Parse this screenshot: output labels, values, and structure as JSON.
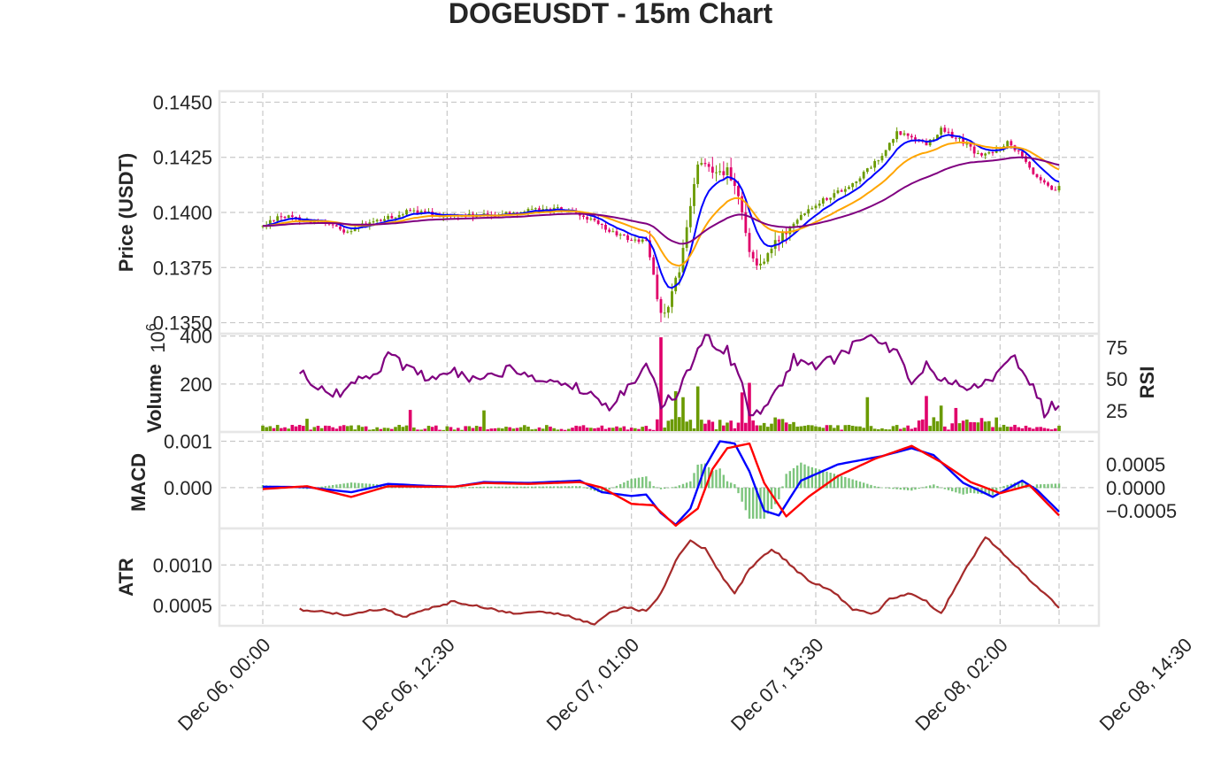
{
  "title": "DOGEUSDT - 15m Chart",
  "x_tick_labels": [
    "Dec 06, 00:00",
    "Dec 06, 12:30",
    "Dec 07, 01:00",
    "Dec 07, 13:30",
    "Dec 08, 02:00",
    "Dec 08, 14:30"
  ],
  "colors": {
    "up": "#6a9a00",
    "down": "#e0006a",
    "ma_fast": "#0000ff",
    "ma_mid": "#ffa500",
    "ma_slow": "#800080",
    "rsi": "#800080",
    "macd": "#0000ff",
    "signal": "#ff0000",
    "hist": "#66bb66",
    "atr": "#a52a2a"
  },
  "chart_data": [
    {
      "type": "candlestick",
      "panel": "price",
      "ylabel": "Price (USDT)",
      "y_ticks": [
        "0.1350",
        "0.1375",
        "0.1400",
        "0.1425",
        "0.1450"
      ],
      "ylim": [
        0.1345,
        0.1455
      ],
      "candle_anchors": [
        [
          0,
          0.13935
        ],
        [
          4,
          0.13985
        ],
        [
          10,
          0.1397
        ],
        [
          16,
          0.13955
        ],
        [
          22,
          0.13915
        ],
        [
          30,
          0.13955
        ],
        [
          40,
          0.14005
        ],
        [
          50,
          0.13985
        ],
        [
          60,
          0.13985
        ],
        [
          70,
          0.14005
        ],
        [
          80,
          0.14015
        ],
        [
          88,
          0.13975
        ],
        [
          94,
          0.13915
        ],
        [
          100,
          0.13875
        ],
        [
          104,
          0.1387
        ],
        [
          106,
          0.1372
        ],
        [
          108,
          0.13535
        ],
        [
          110,
          0.1356
        ],
        [
          112,
          0.1368
        ],
        [
          114,
          0.1382
        ],
        [
          116,
          0.1403
        ],
        [
          118,
          0.1421
        ],
        [
          122,
          0.14205
        ],
        [
          126,
          0.14185
        ],
        [
          130,
          0.1402
        ],
        [
          132,
          0.1382
        ],
        [
          134,
          0.1376
        ],
        [
          136,
          0.1378
        ],
        [
          140,
          0.1388
        ],
        [
          144,
          0.1397
        ],
        [
          150,
          0.1404
        ],
        [
          160,
          0.1413
        ],
        [
          168,
          0.14255
        ],
        [
          172,
          0.1436
        ],
        [
          176,
          0.14345
        ],
        [
          180,
          0.1431
        ],
        [
          184,
          0.14375
        ],
        [
          190,
          0.1432
        ],
        [
          194,
          0.1426
        ],
        [
          198,
          0.1427
        ],
        [
          202,
          0.1432
        ],
        [
          206,
          0.14265
        ],
        [
          210,
          0.1415
        ],
        [
          214,
          0.141
        ],
        [
          216,
          0.1411
        ]
      ],
      "series": [
        {
          "name": "",
          "color": "#0000ff"
        },
        {
          "name": "",
          "color": "#ffa500"
        },
        {
          "name": "",
          "color": "#800080"
        }
      ]
    },
    {
      "type": "bar",
      "panel": "volume",
      "ylabel": "Volume",
      "scale_label": "1e6",
      "y_ticks": [
        "200",
        "400"
      ],
      "ylim": [
        0,
        410
      ],
      "spikes": [
        [
          12,
          55
        ],
        [
          40,
          92
        ],
        [
          60,
          90
        ],
        [
          108,
          395
        ],
        [
          112,
          170
        ],
        [
          114,
          145
        ],
        [
          118,
          190
        ],
        [
          130,
          165
        ],
        [
          132,
          205
        ],
        [
          164,
          145
        ],
        [
          180,
          150
        ],
        [
          184,
          110
        ],
        [
          188,
          100
        ]
      ]
    },
    {
      "type": "line",
      "panel": "rsi",
      "ylabel": "RSI",
      "y_ticks": [
        "25",
        "50",
        "75"
      ],
      "ylim": [
        8,
        86
      ],
      "anchors": [
        [
          10,
          57
        ],
        [
          14,
          44
        ],
        [
          20,
          38
        ],
        [
          26,
          48
        ],
        [
          32,
          56
        ],
        [
          34,
          68
        ],
        [
          40,
          58
        ],
        [
          46,
          48
        ],
        [
          52,
          55
        ],
        [
          60,
          48
        ],
        [
          66,
          58
        ],
        [
          72,
          52
        ],
        [
          80,
          48
        ],
        [
          86,
          42
        ],
        [
          90,
          38
        ],
        [
          94,
          28
        ],
        [
          100,
          44
        ],
        [
          104,
          62
        ],
        [
          106,
          55
        ],
        [
          108,
          28
        ],
        [
          112,
          38
        ],
        [
          116,
          60
        ],
        [
          120,
          84
        ],
        [
          126,
          72
        ],
        [
          130,
          46
        ],
        [
          132,
          22
        ],
        [
          136,
          28
        ],
        [
          140,
          42
        ],
        [
          144,
          66
        ],
        [
          150,
          62
        ],
        [
          156,
          66
        ],
        [
          162,
          82
        ],
        [
          168,
          80
        ],
        [
          172,
          70
        ],
        [
          176,
          44
        ],
        [
          180,
          60
        ],
        [
          186,
          48
        ],
        [
          192,
          44
        ],
        [
          198,
          48
        ],
        [
          204,
          66
        ],
        [
          208,
          50
        ],
        [
          212,
          24
        ],
        [
          216,
          32
        ]
      ]
    },
    {
      "type": "line",
      "panel": "macd",
      "ylabel": "MACD",
      "y_ticks": [
        "0.000",
        "0.001"
      ],
      "y_ticks_right": [
        "−0.0005",
        "0.0000",
        "0.0005"
      ],
      "ylim": [
        -0.00088,
        0.0012
      ],
      "series": [
        {
          "name": "",
          "anchors": [
            [
              0,
              2e-05
            ],
            [
              12,
              1e-05
            ],
            [
              24,
              -0.0001
            ],
            [
              34,
              8e-05
            ],
            [
              44,
              4e-05
            ],
            [
              52,
              2e-05
            ],
            [
              60,
              0.00012
            ],
            [
              72,
              0.0001
            ],
            [
              86,
              0.00015
            ],
            [
              92,
              -0.0001
            ],
            [
              100,
              -0.00018
            ],
            [
              104,
              -0.00015
            ],
            [
              108,
              -0.00055
            ],
            [
              112,
              -0.0008
            ],
            [
              116,
              -0.00045
            ],
            [
              120,
              0.00045
            ],
            [
              124,
              0.001
            ],
            [
              128,
              0.00095
            ],
            [
              132,
              0.00035
            ],
            [
              136,
              -0.0005
            ],
            [
              140,
              -0.0006
            ],
            [
              146,
              0.00015
            ],
            [
              156,
              0.0005
            ],
            [
              168,
              0.00068
            ],
            [
              176,
              0.00085
            ],
            [
              182,
              0.0007
            ],
            [
              190,
              0.0001
            ],
            [
              198,
              -0.0002
            ],
            [
              206,
              0.00015
            ],
            [
              210,
              -5e-05
            ],
            [
              216,
              -0.00052
            ]
          ]
        },
        {
          "name": "",
          "anchors": [
            [
              0,
              -3e-05
            ],
            [
              12,
              3e-05
            ],
            [
              24,
              -0.0002
            ],
            [
              34,
              3e-05
            ],
            [
              44,
              2e-05
            ],
            [
              52,
              2e-05
            ],
            [
              60,
              0.0001
            ],
            [
              72,
              8e-05
            ],
            [
              86,
              0.00012
            ],
            [
              92,
              0.0
            ],
            [
              100,
              -0.00035
            ],
            [
              106,
              -0.00038
            ],
            [
              112,
              -0.00082
            ],
            [
              118,
              -0.00045
            ],
            [
              122,
              0.0004
            ],
            [
              126,
              0.00085
            ],
            [
              132,
              0.00095
            ],
            [
              136,
              0.0001
            ],
            [
              142,
              -0.00062
            ],
            [
              148,
              -0.0002
            ],
            [
              156,
              0.00025
            ],
            [
              166,
              0.00062
            ],
            [
              176,
              0.0009
            ],
            [
              184,
              0.00055
            ],
            [
              192,
              0.00012
            ],
            [
              200,
              -0.00012
            ],
            [
              208,
              5e-05
            ],
            [
              216,
              -0.0006
            ]
          ]
        }
      ]
    },
    {
      "type": "line",
      "panel": "atr",
      "ylabel": "ATR",
      "y_ticks": [
        "0.0005",
        "0.0010"
      ],
      "ylim": [
        0.00025,
        0.00145
      ],
      "anchors": [
        [
          10,
          0.00045
        ],
        [
          16,
          0.00043
        ],
        [
          22,
          0.00038
        ],
        [
          28,
          0.00043
        ],
        [
          34,
          0.00045
        ],
        [
          38,
          0.00036
        ],
        [
          46,
          0.00048
        ],
        [
          52,
          0.00055
        ],
        [
          60,
          0.00048
        ],
        [
          68,
          0.0004
        ],
        [
          74,
          0.00043
        ],
        [
          82,
          0.00038
        ],
        [
          86,
          0.00032
        ],
        [
          90,
          0.00028
        ],
        [
          94,
          0.0004
        ],
        [
          98,
          0.00048
        ],
        [
          104,
          0.00043
        ],
        [
          108,
          0.00065
        ],
        [
          112,
          0.00105
        ],
        [
          116,
          0.0013
        ],
        [
          120,
          0.0012
        ],
        [
          124,
          0.0009
        ],
        [
          128,
          0.00065
        ],
        [
          132,
          0.00095
        ],
        [
          138,
          0.0012
        ],
        [
          142,
          0.00105
        ],
        [
          148,
          0.0008
        ],
        [
          154,
          0.0007
        ],
        [
          160,
          0.00045
        ],
        [
          166,
          0.0004
        ],
        [
          170,
          0.00058
        ],
        [
          176,
          0.00065
        ],
        [
          180,
          0.00055
        ],
        [
          184,
          0.0004
        ],
        [
          190,
          0.0009
        ],
        [
          196,
          0.00135
        ],
        [
          200,
          0.00118
        ],
        [
          206,
          0.0009
        ],
        [
          212,
          0.00065
        ],
        [
          216,
          0.00048
        ]
      ]
    }
  ]
}
